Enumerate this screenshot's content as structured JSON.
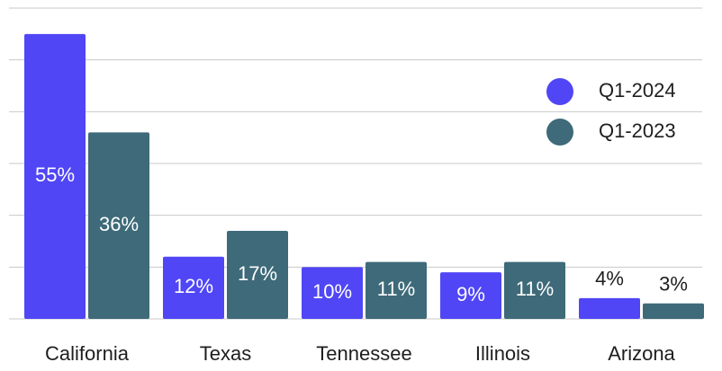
{
  "chart_data": {
    "type": "bar",
    "categories": [
      "California",
      "Texas",
      "Tennessee",
      "Illinois",
      "Arizona"
    ],
    "series": [
      {
        "name": "Q1-2024",
        "color": "#5046f5",
        "values": [
          55,
          12,
          10,
          9,
          4
        ],
        "value_labels": [
          "55%",
          "12%",
          "10%",
          "9%",
          "4%"
        ]
      },
      {
        "name": "Q1-2023",
        "color": "#3e6a79",
        "values": [
          36,
          17,
          11,
          11,
          3
        ],
        "value_labels": [
          "36%",
          "17%",
          "11%",
          "11%",
          "3%"
        ]
      }
    ],
    "ylim": [
      0,
      60
    ],
    "yticks": [
      0,
      10,
      20,
      30,
      40,
      50,
      60
    ],
    "grid": true,
    "legend": "upper right"
  }
}
